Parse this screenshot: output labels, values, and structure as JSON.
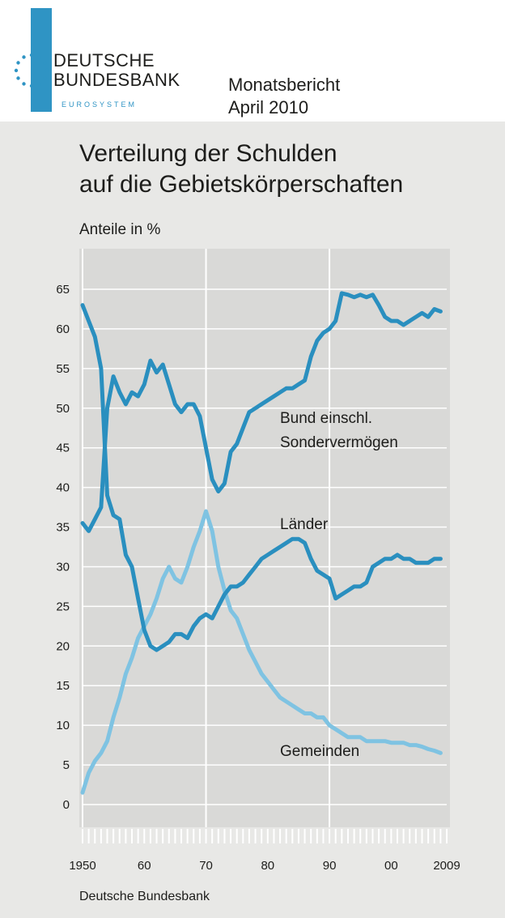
{
  "header": {
    "logo_line1": "DEUTSCHE",
    "logo_line2": "BUNDESBANK",
    "logo_line3": "EUROSYSTEM",
    "publication_line1": "Monatsbericht",
    "publication_line2": "April 2010"
  },
  "colors": {
    "panel_bg": "#e8e8e6",
    "plot_bg": "#d9d9d7",
    "bund": "#2a8fbf",
    "laender": "#2a8fbf",
    "gemeinden": "#7fc3e2"
  },
  "chart_data": {
    "type": "line",
    "title": "Verteilung der Schulden auf die Gebietskörperschaften",
    "title_line1": "Verteilung der Schulden",
    "title_line2": "auf die Gebietskörperschaften",
    "ylabel": "Anteile in %",
    "source": "Deutsche Bundesbank",
    "ylim": [
      0,
      68
    ],
    "xlim": [
      1950,
      2009
    ],
    "grid": true,
    "y_ticks": [
      "65",
      "60",
      "55",
      "50",
      "45",
      "40",
      "35",
      "30",
      "25",
      "20",
      "15",
      "10",
      "5",
      "0"
    ],
    "x_ticks": [
      "1950",
      "60",
      "70",
      "80",
      "90",
      "00",
      "2009"
    ],
    "annotations": [
      {
        "text": "Bund einschl.",
        "series": "bund"
      },
      {
        "text": "Sondervermögen",
        "series": "bund"
      },
      {
        "text": "Länder",
        "series": "laender"
      },
      {
        "text": "Gemeinden",
        "series": "gemeinden"
      }
    ],
    "series": [
      {
        "key": "bund",
        "x": [
          1950,
          1951,
          1952,
          1953,
          1954,
          1955,
          1956,
          1957,
          1958,
          1959,
          1960,
          1961,
          1962,
          1963,
          1964,
          1965,
          1966,
          1967,
          1968,
          1969,
          1970,
          1971,
          1972,
          1973,
          1974,
          1975,
          1976,
          1977,
          1978,
          1979,
          1980,
          1981,
          1982,
          1983,
          1984,
          1985,
          1986,
          1987,
          1988,
          1989,
          1990,
          1991,
          1992,
          1993,
          1994,
          1995,
          1996,
          1997,
          1998,
          1999,
          2000,
          2001,
          2002,
          2003,
          2004,
          2005,
          2006,
          2007,
          2008
        ],
        "values": [
          35.5,
          34.5,
          36.0,
          37.5,
          50.0,
          54.0,
          52.0,
          50.5,
          52.0,
          51.5,
          53.0,
          56.0,
          54.5,
          55.5,
          53.0,
          50.5,
          49.5,
          50.5,
          50.5,
          49.0,
          45.0,
          41.0,
          39.5,
          40.5,
          44.5,
          45.5,
          47.5,
          49.5,
          50.0,
          50.5,
          51.0,
          51.5,
          52.0,
          52.5,
          52.5,
          53.0,
          53.5,
          56.5,
          58.5,
          59.5,
          60.0,
          61.0,
          64.5,
          64.3,
          64.0,
          64.3,
          64.0,
          64.3,
          63.0,
          61.5,
          61.0,
          61.0,
          60.5,
          61.0,
          61.5,
          62.0,
          61.5,
          62.5,
          62.2
        ]
      },
      {
        "key": "laender",
        "x": [
          1950,
          1951,
          1952,
          1953,
          1954,
          1955,
          1956,
          1957,
          1958,
          1959,
          1960,
          1961,
          1962,
          1963,
          1964,
          1965,
          1966,
          1967,
          1968,
          1969,
          1970,
          1971,
          1972,
          1973,
          1974,
          1975,
          1976,
          1977,
          1978,
          1979,
          1980,
          1981,
          1982,
          1983,
          1984,
          1985,
          1986,
          1987,
          1988,
          1989,
          1990,
          1991,
          1992,
          1993,
          1994,
          1995,
          1996,
          1997,
          1998,
          1999,
          2000,
          2001,
          2002,
          2003,
          2004,
          2005,
          2006,
          2007,
          2008
        ],
        "values": [
          63.0,
          61.0,
          59.0,
          55.0,
          39.0,
          36.5,
          36.0,
          31.5,
          30.0,
          26.0,
          22.0,
          20.0,
          19.5,
          20.0,
          20.5,
          21.5,
          21.5,
          21.0,
          22.5,
          23.5,
          24.0,
          23.5,
          25.0,
          26.5,
          27.5,
          27.5,
          28.0,
          29.0,
          30.0,
          31.0,
          31.5,
          32.0,
          32.5,
          33.0,
          33.5,
          33.5,
          33.0,
          31.0,
          29.5,
          29.0,
          28.5,
          26.0,
          26.5,
          27.0,
          27.5,
          27.5,
          28.0,
          30.0,
          30.5,
          31.0,
          31.0,
          31.5,
          31.0,
          31.0,
          30.5,
          30.5,
          30.5,
          31.0,
          31.0
        ]
      },
      {
        "key": "gemeinden",
        "x": [
          1950,
          1951,
          1952,
          1953,
          1954,
          1955,
          1956,
          1957,
          1958,
          1959,
          1960,
          1961,
          1962,
          1963,
          1964,
          1965,
          1966,
          1967,
          1968,
          1969,
          1970,
          1971,
          1972,
          1973,
          1974,
          1975,
          1976,
          1977,
          1978,
          1979,
          1980,
          1981,
          1982,
          1983,
          1984,
          1985,
          1986,
          1987,
          1988,
          1989,
          1990,
          1991,
          1992,
          1993,
          1994,
          1995,
          1996,
          1997,
          1998,
          1999,
          2000,
          2001,
          2002,
          2003,
          2004,
          2005,
          2006,
          2007,
          2008
        ],
        "values": [
          1.5,
          4.0,
          5.5,
          6.5,
          8.0,
          11.0,
          13.5,
          16.5,
          18.5,
          21.0,
          22.5,
          24.0,
          26.0,
          28.5,
          30.0,
          28.5,
          28.0,
          30.0,
          32.5,
          34.5,
          37.0,
          34.5,
          30.0,
          27.0,
          24.5,
          23.5,
          21.5,
          19.5,
          18.0,
          16.5,
          15.5,
          14.5,
          13.5,
          13.0,
          12.5,
          12.0,
          11.5,
          11.5,
          11.0,
          11.0,
          10.0,
          9.5,
          9.0,
          8.5,
          8.5,
          8.5,
          8.0,
          8.0,
          8.0,
          8.0,
          7.8,
          7.8,
          7.8,
          7.5,
          7.5,
          7.3,
          7.0,
          6.8,
          6.5
        ]
      }
    ]
  }
}
